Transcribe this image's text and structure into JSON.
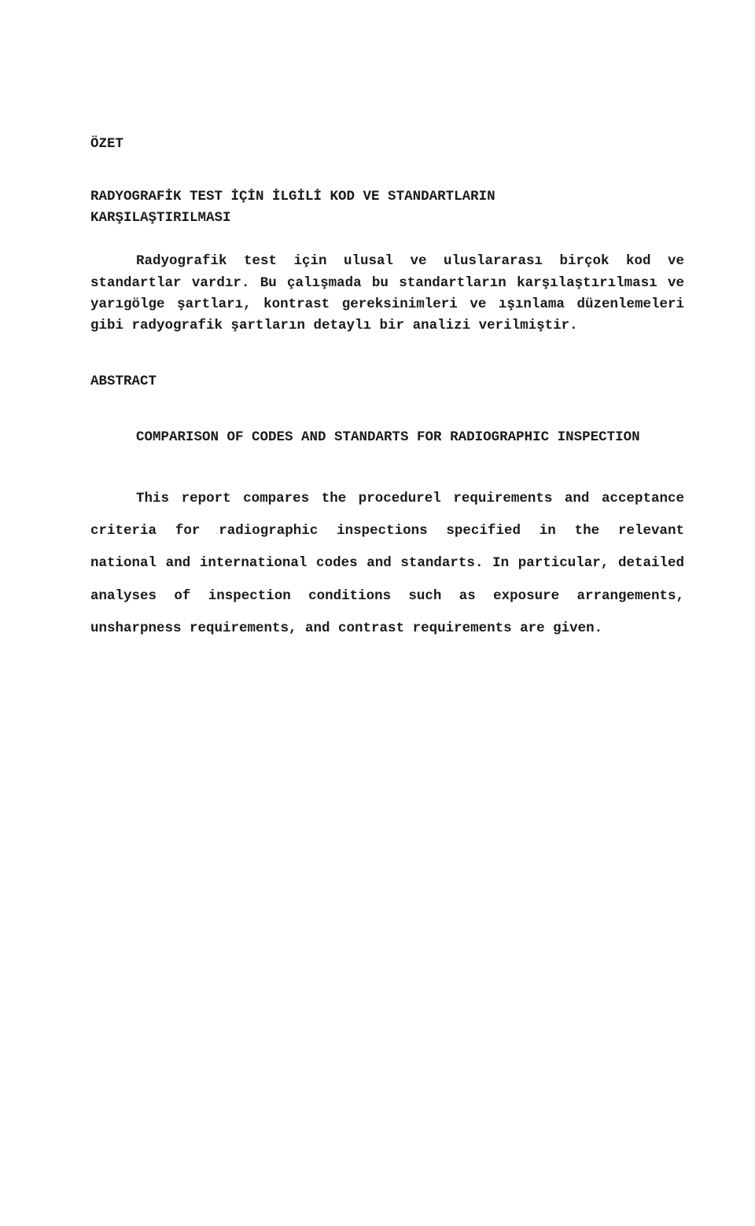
{
  "colors": {
    "text": "#1a1a1a",
    "background": "#ffffff"
  },
  "typography": {
    "family": "Courier New",
    "weight": "bold",
    "body_fontsize_pt": 13,
    "line_height_body": 2.35
  },
  "ozet": {
    "heading": "ÖZET",
    "title_line1": "RADYOGRAFİK TEST İÇİN İLGİLİ KOD VE STANDARTLARIN",
    "title_line2": "KARŞILAŞTIRILMASI",
    "para1": "Radyografik test için ulusal ve uluslararası birçok kod ve standartlar vardır. Bu çalışmada bu standartların karşılaştırılması ve yarıgölge şartları, kontrast gereksinimleri ve ışınlama düzenlemeleri gibi radyografik şartların detaylı bir analizi verilmiştir."
  },
  "abstract": {
    "heading": "ABSTRACT",
    "title": "COMPARISON OF CODES AND STANDARTS FOR RADIOGRAPHIC INSPECTION",
    "para1": "This report compares the procedurel requirements and acceptance criteria for radiographic inspections specified in the relevant national and international codes and standarts. In particular, detailed analyses of inspection conditions such as exposure arrangements, unsharpness requirements, and contrast requirements are given."
  }
}
